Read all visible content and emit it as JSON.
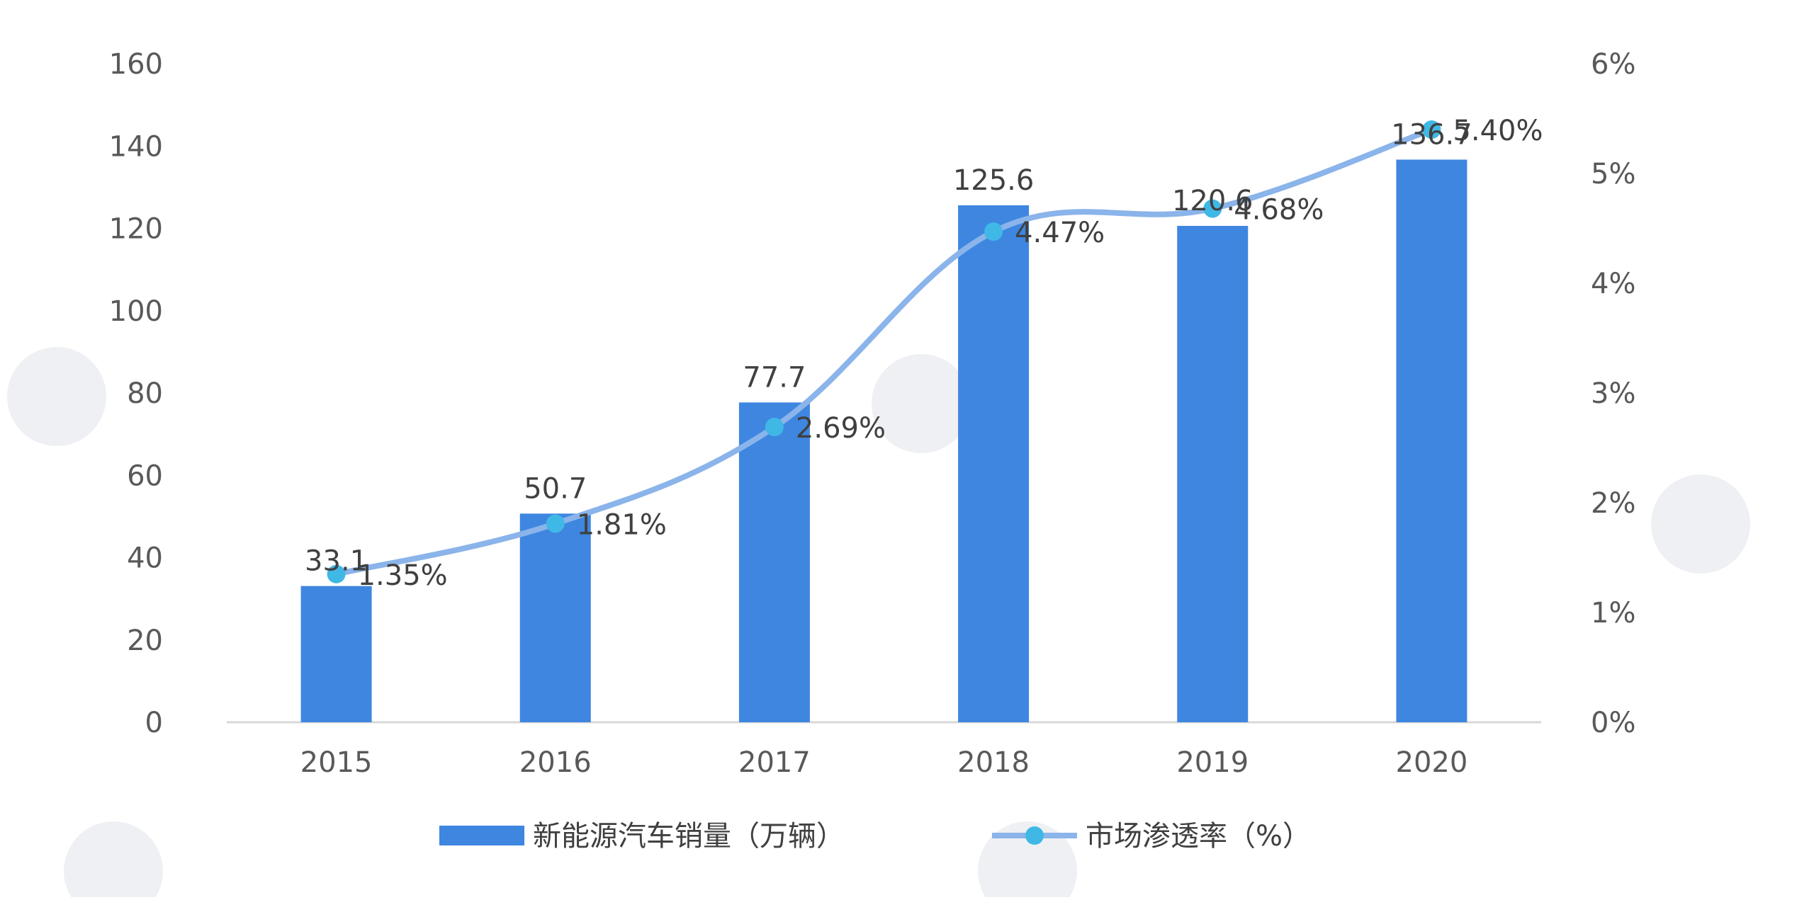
{
  "chart_data": {
    "type": "bar",
    "categories": [
      "2015",
      "2016",
      "2017",
      "2018",
      "2019",
      "2020"
    ],
    "series": [
      {
        "name": "新能源汽车销量（万辆）",
        "type": "bar",
        "axis": "left",
        "values": [
          33.1,
          50.7,
          77.7,
          125.6,
          120.6,
          136.7
        ],
        "labels": [
          "33.1",
          "50.7",
          "77.7",
          "125.6",
          "120.6",
          "136.7"
        ]
      },
      {
        "name": "市场渗透率（%）",
        "type": "line",
        "axis": "right",
        "values": [
          1.35,
          1.81,
          2.69,
          4.47,
          4.68,
          5.4
        ],
        "labels": [
          "1.35%",
          "1.81%",
          "2.69%",
          "4.47%",
          "4.68%",
          "5.40%"
        ]
      }
    ],
    "left_axis": {
      "ylim": [
        0,
        160
      ],
      "ticks": [
        0,
        20,
        40,
        60,
        80,
        100,
        120,
        140,
        160
      ],
      "tick_labels": [
        "0",
        "20",
        "40",
        "60",
        "80",
        "100",
        "120",
        "140",
        "160"
      ]
    },
    "right_axis": {
      "ylim": [
        0,
        6
      ],
      "ticks": [
        0,
        1,
        2,
        3,
        4,
        5,
        6
      ],
      "tick_labels": [
        "0%",
        "1%",
        "2%",
        "3%",
        "4%",
        "5%",
        "6%"
      ]
    },
    "grid": false,
    "legend_position": "bottom",
    "colors": {
      "bar": "#3e86e0",
      "line": "#8ab4ea",
      "marker": "#40b8e6",
      "axis_line": "#d9d9d9"
    }
  }
}
